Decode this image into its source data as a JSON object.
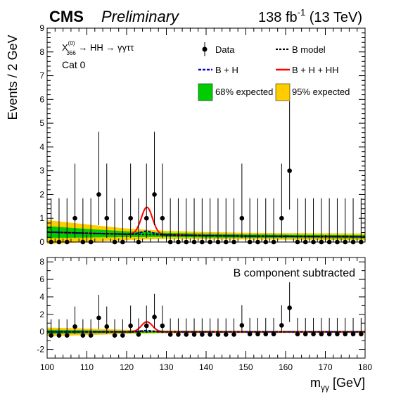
{
  "header": {
    "experiment": "CMS",
    "status": "Preliminary",
    "lumi_main": "138 fb",
    "lumi_exp": "-1",
    "lumi_energy": " (13 TeV)"
  },
  "process": {
    "chi": "X",
    "chi_sup": "(0)",
    "chi_sub": "366",
    "decay": " → HH → γγττ",
    "category": "Cat 0"
  },
  "legend": {
    "data": "Data",
    "b_model": "B model",
    "b_plus_h": "B + H",
    "b_h_hh": "B + H + HH",
    "band68": "68% expected",
    "band95": "95% expected"
  },
  "colors": {
    "band68": "#00cc00",
    "band95": "#ffcc00",
    "signal": "#ff0000",
    "b_plus_h": "#0000cc",
    "b_model": "#000000",
    "data": "#000000"
  },
  "chart_data": [
    {
      "type": "scatter",
      "panel": "upper",
      "ylabel": "Events / 2 GeV",
      "xlim": [
        100,
        180
      ],
      "ylim": [
        0,
        9
      ],
      "yticks": [
        0,
        1,
        2,
        3,
        4,
        5,
        6,
        7,
        8,
        9
      ],
      "bin_width": 2,
      "x": [
        101,
        103,
        105,
        107,
        109,
        111,
        113,
        115,
        117,
        119,
        121,
        123,
        125,
        127,
        129,
        131,
        133,
        135,
        137,
        139,
        141,
        143,
        145,
        147,
        149,
        151,
        153,
        155,
        157,
        159,
        161,
        163,
        165,
        167,
        169,
        171,
        173,
        175,
        177,
        179
      ],
      "series": [
        {
          "name": "Data",
          "y": [
            0,
            0,
            0,
            1,
            0,
            0,
            2,
            1,
            0,
            0,
            1,
            0,
            1,
            2,
            1,
            0,
            0,
            0,
            0,
            0,
            0,
            0,
            0,
            0,
            1,
            0,
            0,
            0,
            0,
            1,
            3,
            0,
            0,
            0,
            0,
            0,
            0,
            0,
            0,
            0
          ],
          "err_high": [
            1.84,
            1.84,
            1.84,
            2.3,
            1.84,
            1.84,
            2.64,
            2.3,
            1.84,
            1.84,
            2.3,
            1.84,
            2.3,
            2.64,
            2.3,
            1.84,
            1.84,
            1.84,
            1.84,
            1.84,
            1.84,
            1.84,
            1.84,
            1.84,
            2.3,
            1.84,
            1.84,
            1.84,
            1.84,
            2.3,
            2.92,
            1.84,
            1.84,
            1.84,
            1.84,
            1.84,
            1.84,
            1.84,
            1.84,
            1.84
          ],
          "err_low": [
            0,
            0,
            0,
            0.83,
            0,
            0,
            1.29,
            0.83,
            0,
            0,
            0.83,
            0,
            0.83,
            1.29,
            0.83,
            0,
            0,
            0,
            0,
            0,
            0,
            0,
            0,
            0,
            0.83,
            0,
            0,
            0,
            0,
            0.83,
            1.63,
            0,
            0,
            0,
            0,
            0,
            0,
            0,
            0,
            0
          ]
        },
        {
          "name": "B model",
          "x": [
            100,
            110,
            120,
            130,
            140,
            150,
            160,
            170,
            180
          ],
          "y": [
            0.42,
            0.37,
            0.33,
            0.3,
            0.27,
            0.25,
            0.24,
            0.23,
            0.22
          ]
        },
        {
          "name": "B + H",
          "bump_center": 125,
          "bump_height": 0.14,
          "bump_sigma": 1.5
        },
        {
          "name": "B + H + HH",
          "bump_center": 125.1,
          "bump_height": 1.15,
          "bump_sigma": 1.4
        },
        {
          "name": "68% expected",
          "x": [
            100,
            110,
            120,
            130,
            140,
            150,
            160,
            170,
            180
          ],
          "half_width": [
            0.25,
            0.18,
            0.12,
            0.09,
            0.08,
            0.07,
            0.07,
            0.07,
            0.07
          ]
        },
        {
          "name": "95% expected",
          "x": [
            100,
            110,
            120,
            130,
            140,
            150,
            160,
            170,
            180
          ],
          "half_width": [
            0.5,
            0.37,
            0.24,
            0.17,
            0.15,
            0.14,
            0.14,
            0.14,
            0.14
          ]
        }
      ]
    },
    {
      "type": "scatter",
      "panel": "lower",
      "annotation": "B component subtracted",
      "xlabel": "m",
      "xlabel_sub": "γγ",
      "xlabel_unit": " [GeV]",
      "xlim": [
        100,
        180
      ],
      "xticks": [
        100,
        110,
        120,
        130,
        140,
        150,
        160,
        170,
        180
      ],
      "ylim": [
        -3,
        8.5
      ],
      "yticks": [
        -2,
        0,
        2,
        4,
        6,
        8
      ],
      "series": [
        {
          "name": "Data - B",
          "y": [
            -0.4,
            -0.4,
            -0.4,
            0.6,
            -0.4,
            -0.4,
            1.6,
            0.6,
            -0.4,
            -0.4,
            0.7,
            -0.3,
            0.7,
            1.7,
            0.7,
            -0.3,
            -0.3,
            -0.3,
            -0.3,
            -0.3,
            -0.3,
            -0.3,
            -0.3,
            -0.3,
            0.75,
            -0.25,
            -0.25,
            -0.25,
            -0.25,
            0.75,
            2.75,
            -0.25,
            -0.25,
            -0.25,
            -0.25,
            -0.25,
            -0.25,
            -0.25,
            -0.25,
            -0.25
          ]
        }
      ]
    }
  ]
}
